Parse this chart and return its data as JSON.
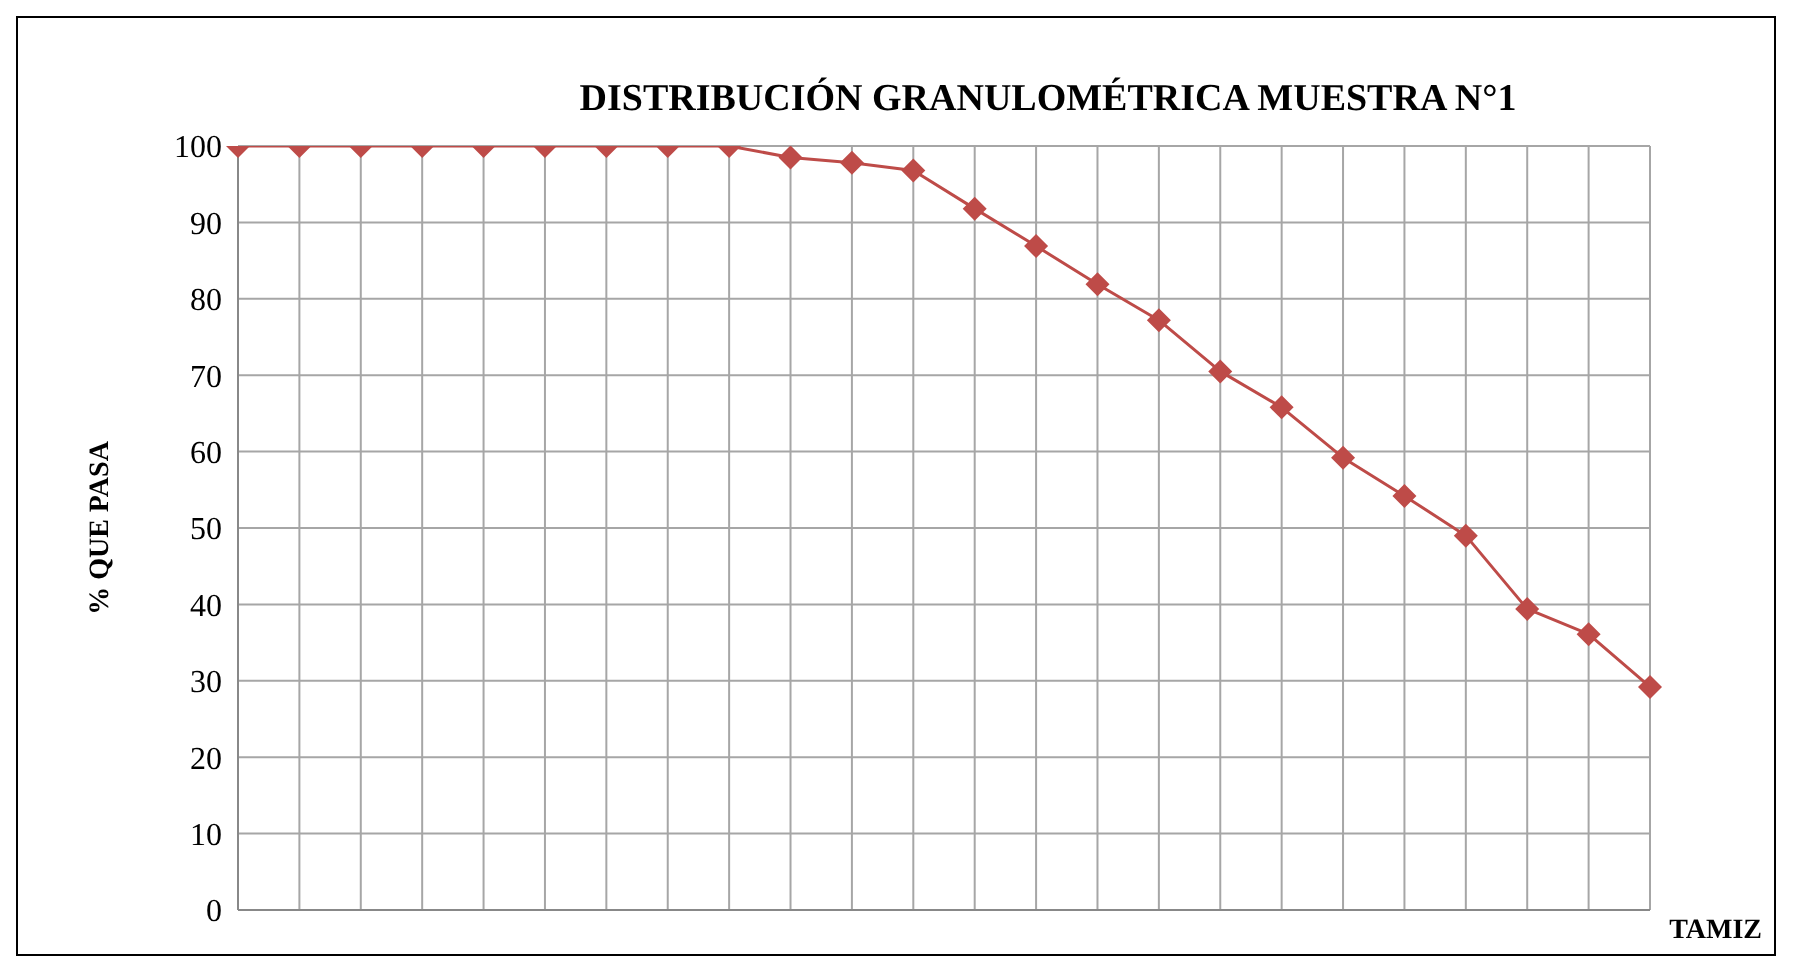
{
  "chart_data": {
    "type": "line",
    "title": "DISTRIBUCIÓN GRANULOMÉTRICA MUESTRA N°1",
    "xlabel": "TAMIZ",
    "ylabel": "% QUE PASA",
    "categories": [
      null,
      null,
      null,
      null,
      null,
      null,
      null,
      null,
      null,
      null,
      null,
      null,
      null,
      null,
      null,
      null,
      null,
      null,
      null,
      null,
      null,
      null,
      null,
      null
    ],
    "series": [
      {
        "color": "#be4b48",
        "values": [
          100,
          100,
          100,
          100,
          100,
          100,
          100,
          100,
          100,
          98.5,
          97.8,
          96.8,
          91.8,
          86.9,
          81.9,
          77.2,
          70.5,
          65.8,
          59.2,
          54.2,
          49,
          39.4,
          36.1,
          29.2
        ]
      }
    ],
    "ylim": [
      0,
      100
    ],
    "yticks": [
      0,
      10,
      20,
      30,
      40,
      50,
      60,
      70,
      80,
      90,
      100
    ],
    "grid": true,
    "marker": "diamond",
    "line_style": "solid",
    "legend": false
  }
}
